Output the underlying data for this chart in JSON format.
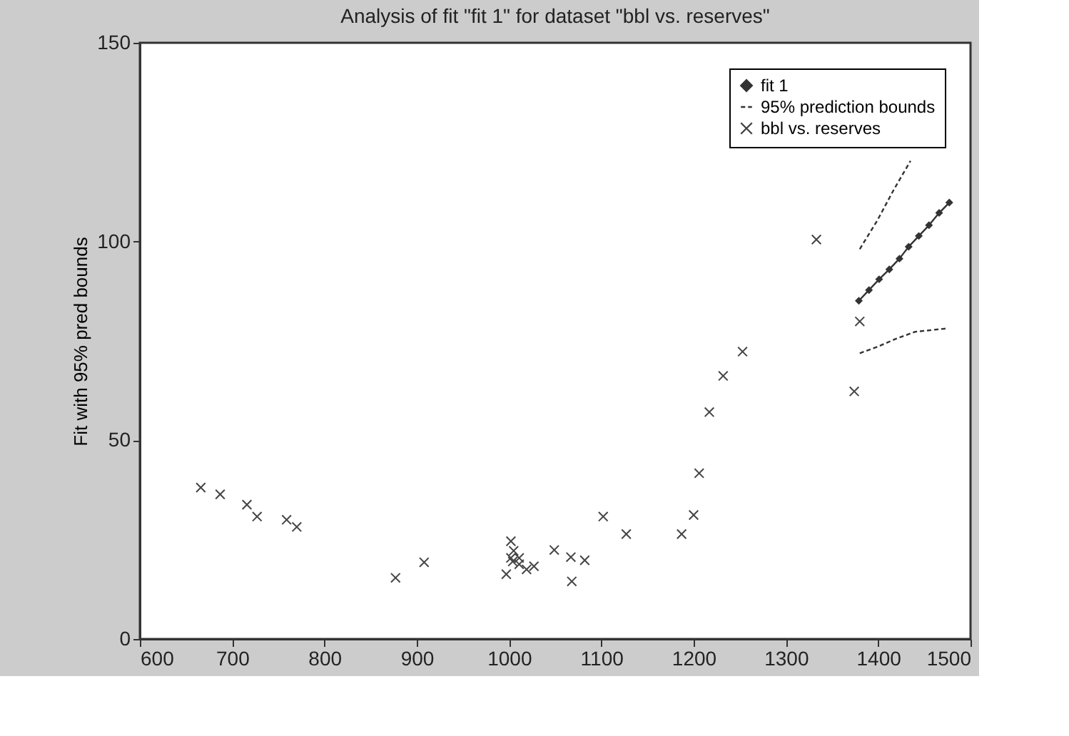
{
  "chart_data": {
    "type": "scatter",
    "title": "Analysis of fit \"fit 1\" for dataset \"bbl vs. reserves\"",
    "ylabel": "Fit with 95% pred bounds",
    "xlim": [
      600,
      1500
    ],
    "xticks": [
      600,
      700,
      800,
      900,
      1000,
      1100,
      1200,
      1300,
      1400,
      1500
    ],
    "ylim": [
      0,
      150
    ],
    "yticks": [
      0,
      50,
      100,
      150
    ],
    "grid": false,
    "legend": "top right",
    "series": [
      {
        "name": "fit 1",
        "type": "line",
        "color": "#333333",
        "marker": "diamond",
        "line_style": "solid",
        "x": [
          1379,
          1390,
          1401,
          1412,
          1423,
          1433,
          1444,
          1455,
          1466,
          1477
        ],
        "values": [
          85.1,
          87.8,
          90.5,
          93.0,
          95.7,
          98.7,
          101.4,
          104.1,
          107.2,
          109.8
        ]
      },
      {
        "name": "95% prediction bounds",
        "type": "line",
        "color": "#333333",
        "marker": "none",
        "line_style": "dashed",
        "x": [
          1380,
          1399,
          1417,
          1435
        ],
        "values": [
          98.1,
          105.3,
          113.1,
          120.3
        ]
      },
      {
        "type": "line",
        "color": "#333333",
        "marker": "none",
        "line_style": "dashed",
        "x": [
          1380,
          1399,
          1419,
          1440,
          1473
        ],
        "values": [
          71.9,
          73.5,
          75.5,
          77.3,
          78.1
        ]
      },
      {
        "name": "bbl vs. reserves",
        "color": "#444444",
        "marker": "cross",
        "x": [
          666,
          687,
          716,
          727,
          759,
          770,
          877,
          908,
          997,
          1002,
          1005,
          1002,
          1004,
          1011,
          1011,
          1019,
          1027,
          1049,
          1067,
          1068,
          1082,
          1102,
          1127,
          1187,
          1200,
          1206,
          1217,
          1232,
          1253,
          1333,
          1374,
          1380
        ],
        "values": [
          38.1,
          36.4,
          33.8,
          30.8,
          30.0,
          28.2,
          15.4,
          19.3,
          16.3,
          24.6,
          22.2,
          20.4,
          19.5,
          20.4,
          18.8,
          17.5,
          18.3,
          22.4,
          20.6,
          14.5,
          19.8,
          30.8,
          26.4,
          26.4,
          31.2,
          41.7,
          57.1,
          66.2,
          72.3,
          100.5,
          62.3,
          79.9
        ]
      }
    ]
  }
}
